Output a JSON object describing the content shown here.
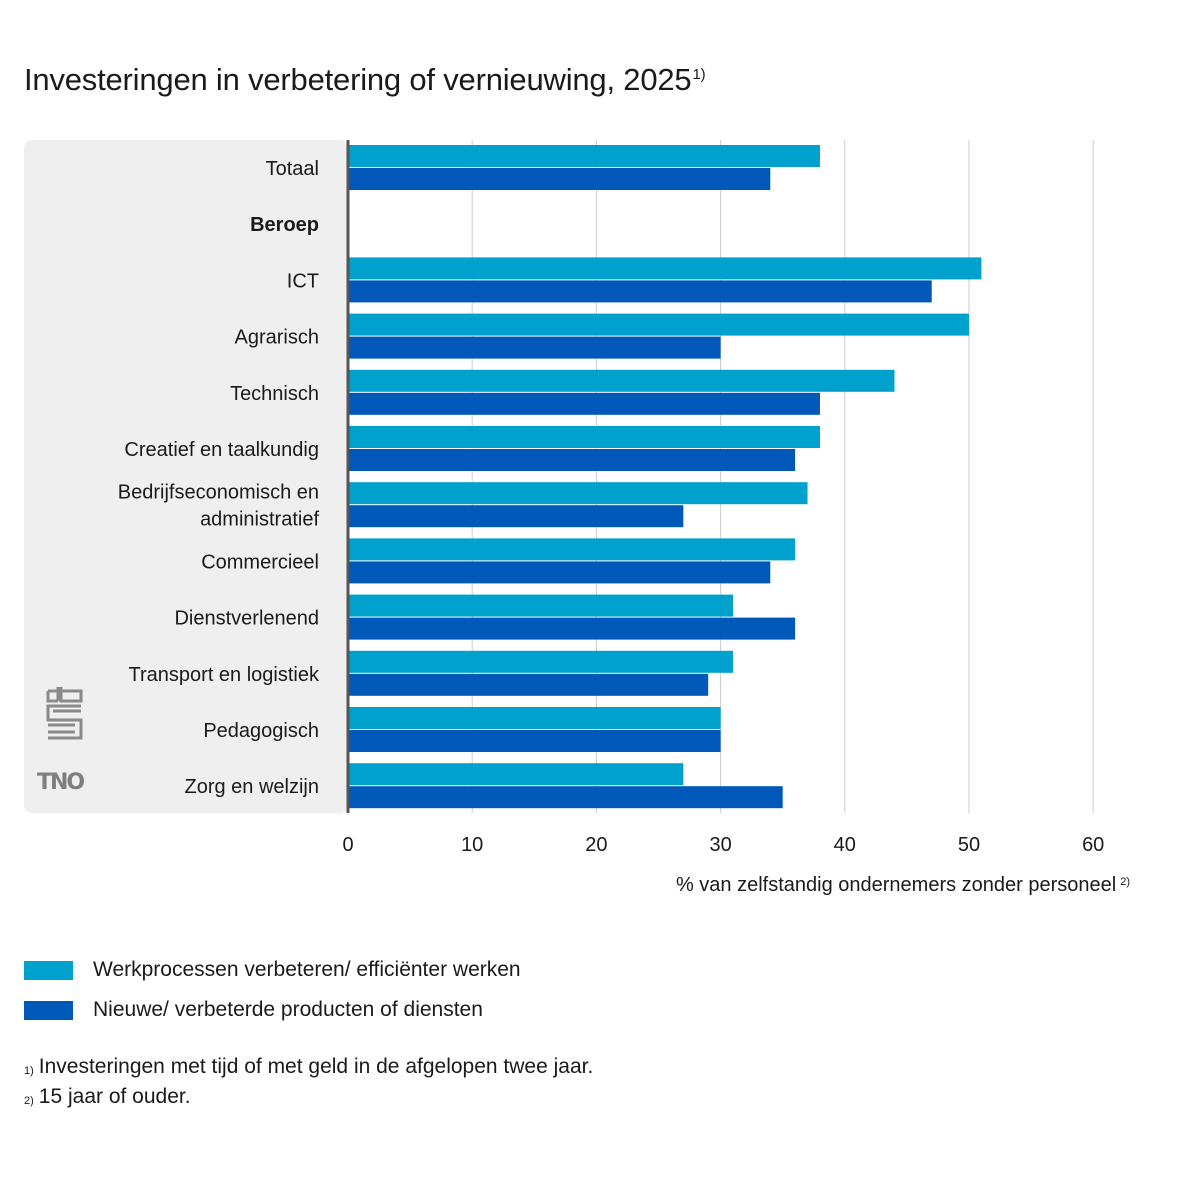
{
  "title": "Investeringen in verbetering of vernieuwing, 2025",
  "title_note": "1)",
  "chart_data": {
    "type": "bar",
    "orientation": "horizontal",
    "categories": [
      "Totaal",
      "Beroep",
      "ICT",
      "Agrarisch",
      "Technisch",
      "Creatief en taalkundig",
      "Bedrijfseconomisch en administratief",
      "Commercieel",
      "Dienstverlenend",
      "Transport en logistiek",
      "Pedagogisch",
      "Zorg en welzijn"
    ],
    "category_lines": [
      [
        "Totaal"
      ],
      [
        "Beroep"
      ],
      [
        "ICT"
      ],
      [
        "Agrarisch"
      ],
      [
        "Technisch"
      ],
      [
        "Creatief en taalkundig"
      ],
      [
        "Bedrijfseconomisch en",
        "administratief"
      ],
      [
        "Commercieel"
      ],
      [
        "Dienstverlenend"
      ],
      [
        "Transport en logistiek"
      ],
      [
        "Pedagogisch"
      ],
      [
        "Zorg en welzijn"
      ]
    ],
    "bold_categories": [
      "Beroep"
    ],
    "series": [
      {
        "name": "Werkprocessen verbeteren/ efficiënter werken",
        "color": "#00a1cd",
        "values": [
          38,
          null,
          51,
          50,
          44,
          38,
          37,
          36,
          31,
          31,
          30,
          27
        ]
      },
      {
        "name": "Nieuwe/ verbeterde producten of diensten",
        "color": "#0058b8",
        "values": [
          34,
          null,
          47,
          30,
          38,
          36,
          27,
          34,
          36,
          29,
          30,
          35
        ]
      }
    ],
    "xlabel": "% van zelfstandig ondernemers zonder personeel",
    "xlabel_note": "2)",
    "xlim": [
      0,
      60
    ],
    "xticks": [
      0,
      10,
      20,
      30,
      40,
      50,
      60
    ],
    "grid": true,
    "legend_position": "bottom-left"
  },
  "legend": [
    {
      "label": "Werkprocessen verbeteren/ efficiënter werken",
      "color": "#00a1cd"
    },
    {
      "label": "Nieuwe/ verbeterde producten of diensten",
      "color": "#0058b8"
    }
  ],
  "footnotes": [
    {
      "mark": "1)",
      "text": "Investeringen met tijd of met geld in de afgelopen twee jaar."
    },
    {
      "mark": "2)",
      "text": "15 jaar of ouder."
    }
  ],
  "logos": {
    "tno": "TNO",
    "cbs": "cbs"
  }
}
